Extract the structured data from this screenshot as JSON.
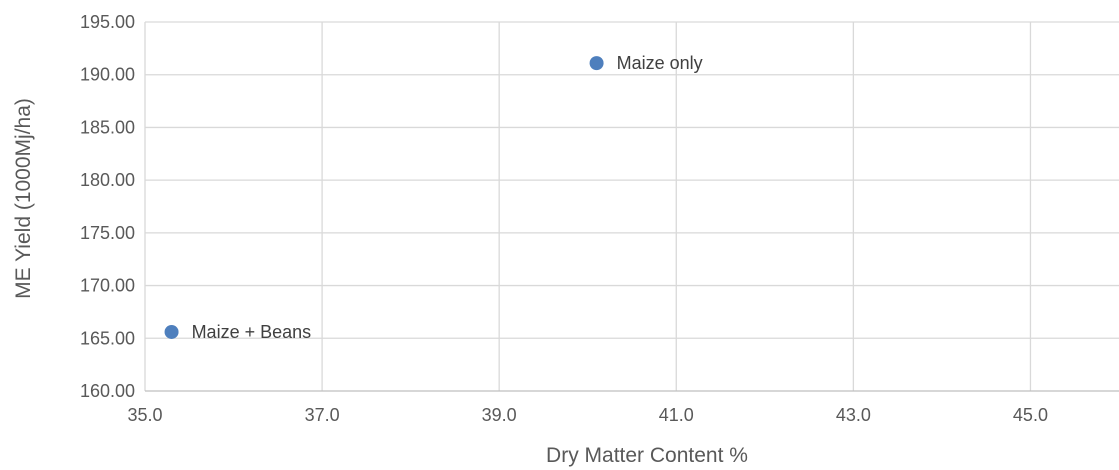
{
  "chart_data": {
    "type": "scatter",
    "title": "",
    "xlabel": "Dry Matter Content %",
    "ylabel": "ME Yield (1000Mj/ha)",
    "xlim": [
      35.0,
      46.0
    ],
    "ylim": [
      160.0,
      195.0
    ],
    "x_ticks": [
      "35.0",
      "37.0",
      "39.0",
      "41.0",
      "43.0",
      "45.0"
    ],
    "x_tick_values": [
      35.0,
      37.0,
      39.0,
      41.0,
      43.0,
      45.0
    ],
    "y_ticks": [
      "160.00",
      "165.00",
      "170.00",
      "175.00",
      "180.00",
      "185.00",
      "190.00",
      "195.00"
    ],
    "y_tick_values": [
      160,
      165,
      170,
      175,
      180,
      185,
      190,
      195
    ],
    "grid": true,
    "marker_color": "#4e7fbd",
    "points": [
      {
        "label": "Maize only",
        "x": 40.1,
        "y": 191.1
      },
      {
        "label": "Maize + Beans",
        "x": 35.3,
        "y": 165.6
      }
    ]
  }
}
